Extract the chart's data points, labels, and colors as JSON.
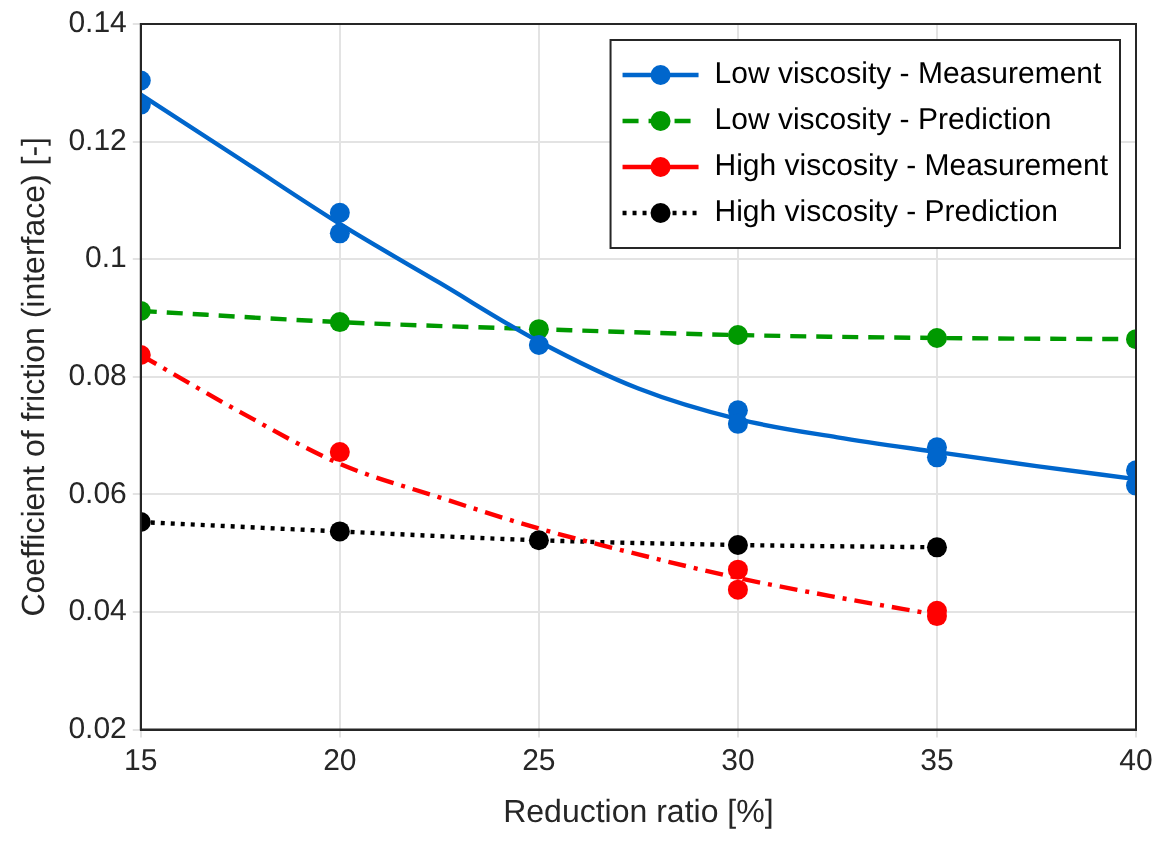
{
  "chart_data": {
    "type": "line",
    "xlabel": "Reduction ratio [%]",
    "ylabel": "Coefficient of friction (interface) [-]",
    "xlim": [
      15,
      40
    ],
    "xticks": [
      15,
      20,
      25,
      30,
      35,
      40
    ],
    "ylim": [
      0.02,
      0.14
    ],
    "yticks": [
      0.02,
      0.04,
      0.06,
      0.08,
      0.1,
      0.12,
      0.14
    ],
    "grid": true,
    "legend": "top right",
    "marker": "circle",
    "series": [
      {
        "name": "Low viscosity - Measurement",
        "type": "scatter",
        "color": "#0066cc",
        "x": [
          15,
          15,
          20,
          20,
          25,
          30,
          30,
          35,
          35,
          40,
          40
        ],
        "values": [
          0.1304,
          0.1263,
          0.1079,
          0.1044,
          0.0854,
          0.0743,
          0.072,
          0.068,
          0.0663,
          0.0641,
          0.0615
        ]
      },
      {
        "type": "line",
        "color": "#0066cc",
        "marker": "none",
        "line_style": "solid",
        "x": [
          15,
          17.5,
          20,
          22.5,
          25,
          27.5,
          30,
          32.5,
          35,
          37.5,
          40
        ],
        "values": [
          0.128,
          0.117,
          0.106,
          0.096,
          0.086,
          0.078,
          0.0728,
          0.0697,
          0.0672,
          0.0648,
          0.0626
        ]
      },
      {
        "name": "Low viscosity - Prediction",
        "type": "line",
        "color": "#009900",
        "line_style": "dashed",
        "x": [
          15,
          20,
          25,
          30,
          35,
          40
        ],
        "values": [
          0.0912,
          0.0893,
          0.0881,
          0.0871,
          0.0866,
          0.0864
        ]
      },
      {
        "name": "High viscosity - Measurement",
        "type": "scatter",
        "color": "#ff0000",
        "x": [
          15,
          20,
          30,
          30,
          35,
          35
        ],
        "values": [
          0.0837,
          0.0672,
          0.0472,
          0.0438,
          0.0402,
          0.0393
        ]
      },
      {
        "type": "line",
        "color": "#ff0000",
        "marker": "none",
        "line_style": "dashdot",
        "x": [
          15,
          17.5,
          20,
          22.5,
          25,
          27.5,
          30,
          32.5,
          35
        ],
        "values": [
          0.0837,
          0.074,
          0.0652,
          0.0595,
          0.0542,
          0.0498,
          0.0458,
          0.0425,
          0.0395
        ]
      },
      {
        "name": "High viscosity - Prediction",
        "type": "line",
        "color": "#000000",
        "line_style": "dotted",
        "x": [
          15,
          20,
          25,
          30,
          35
        ],
        "values": [
          0.0553,
          0.0537,
          0.0522,
          0.0514,
          0.051
        ]
      }
    ]
  }
}
